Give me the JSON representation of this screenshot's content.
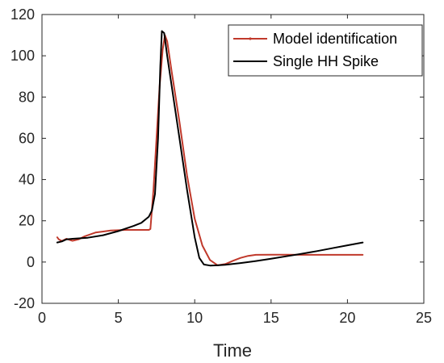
{
  "chart_data": {
    "type": "line",
    "title": "",
    "xlabel": "Time",
    "ylabel": "",
    "xlim": [
      0,
      25
    ],
    "ylim": [
      -20,
      120
    ],
    "xticks": [
      0,
      5,
      10,
      15,
      20,
      25
    ],
    "yticks": [
      -20,
      0,
      20,
      40,
      60,
      80,
      100,
      120
    ],
    "xtick_labels": [
      "0",
      "5",
      "10",
      "15",
      "20",
      "25"
    ],
    "ytick_labels": [
      "-20",
      "0",
      "20",
      "40",
      "60",
      "80",
      "100",
      "120"
    ],
    "grid": false,
    "legend_position": "top-right",
    "series": [
      {
        "name": "Model identification",
        "color": "#c0392b",
        "x": [
          1.0,
          1.1,
          1.3,
          1.6,
          2.0,
          2.4,
          2.8,
          3.5,
          4.5,
          5.5,
          6.5,
          7.0,
          7.1,
          7.3,
          7.5,
          7.7,
          7.9,
          8.05,
          8.2,
          8.5,
          9.0,
          9.5,
          10.0,
          10.5,
          11.0,
          11.5,
          12.0,
          12.5,
          13.0,
          13.5,
          14.0,
          15.0,
          16.0,
          17.0,
          18.0,
          19.0,
          20.0,
          21.0
        ],
        "values": [
          12.0,
          11.0,
          10.2,
          11.3,
          10.3,
          11.0,
          12.5,
          14.3,
          15.3,
          15.6,
          15.6,
          15.6,
          16.0,
          35.0,
          60.0,
          85.0,
          103.0,
          110.0,
          107.0,
          92.0,
          68.0,
          42.0,
          21.0,
          8.0,
          1.0,
          -1.6,
          -1.0,
          0.6,
          2.0,
          3.0,
          3.5,
          3.6,
          3.6,
          3.5,
          3.5,
          3.5,
          3.5,
          3.5
        ]
      },
      {
        "name": "Single HH Spike",
        "color": "#000000",
        "x": [
          1.0,
          1.3,
          1.6,
          2.0,
          2.5,
          3.0,
          4.0,
          5.0,
          6.0,
          6.5,
          7.0,
          7.2,
          7.4,
          7.6,
          7.75,
          7.85,
          8.0,
          8.2,
          8.5,
          9.0,
          9.5,
          10.0,
          10.3,
          10.6,
          11.0,
          11.5,
          12.0,
          13.0,
          14.0,
          15.0,
          16.0,
          17.0,
          18.0,
          19.0,
          20.0,
          21.0
        ],
        "values": [
          9.5,
          10.0,
          11.0,
          11.3,
          11.5,
          11.8,
          13.0,
          15.0,
          17.5,
          19.0,
          22.0,
          25.0,
          33.0,
          60.0,
          95.0,
          112.0,
          111.0,
          100.0,
          85.0,
          60.0,
          35.0,
          12.0,
          2.0,
          -1.2,
          -1.7,
          -1.6,
          -1.3,
          -0.5,
          0.5,
          1.6,
          2.8,
          4.0,
          5.3,
          6.7,
          8.1,
          9.5
        ]
      }
    ]
  }
}
